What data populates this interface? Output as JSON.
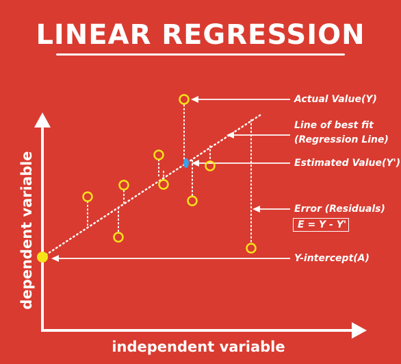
{
  "title": "LINEAR REGRESSION",
  "axes": {
    "x_label": "independent variable",
    "y_label": "dependent variable"
  },
  "annotations": {
    "actual_value": "Actual Value(Y)",
    "best_fit_line_1": "Line of best fit",
    "best_fit_line_2": "(Regression Line)",
    "estimated_value": "Estimated Value(Y')",
    "error": "Error (Residuals)",
    "formula": "E = Y - Y'",
    "y_intercept": "Y-intercept(A)"
  },
  "colors": {
    "background": "#d93b30",
    "point_stroke": "#f5e31a",
    "intercept_fill": "#f5e31a",
    "estimated_point": "#3aa0e8",
    "foreground": "#ffffff"
  }
}
